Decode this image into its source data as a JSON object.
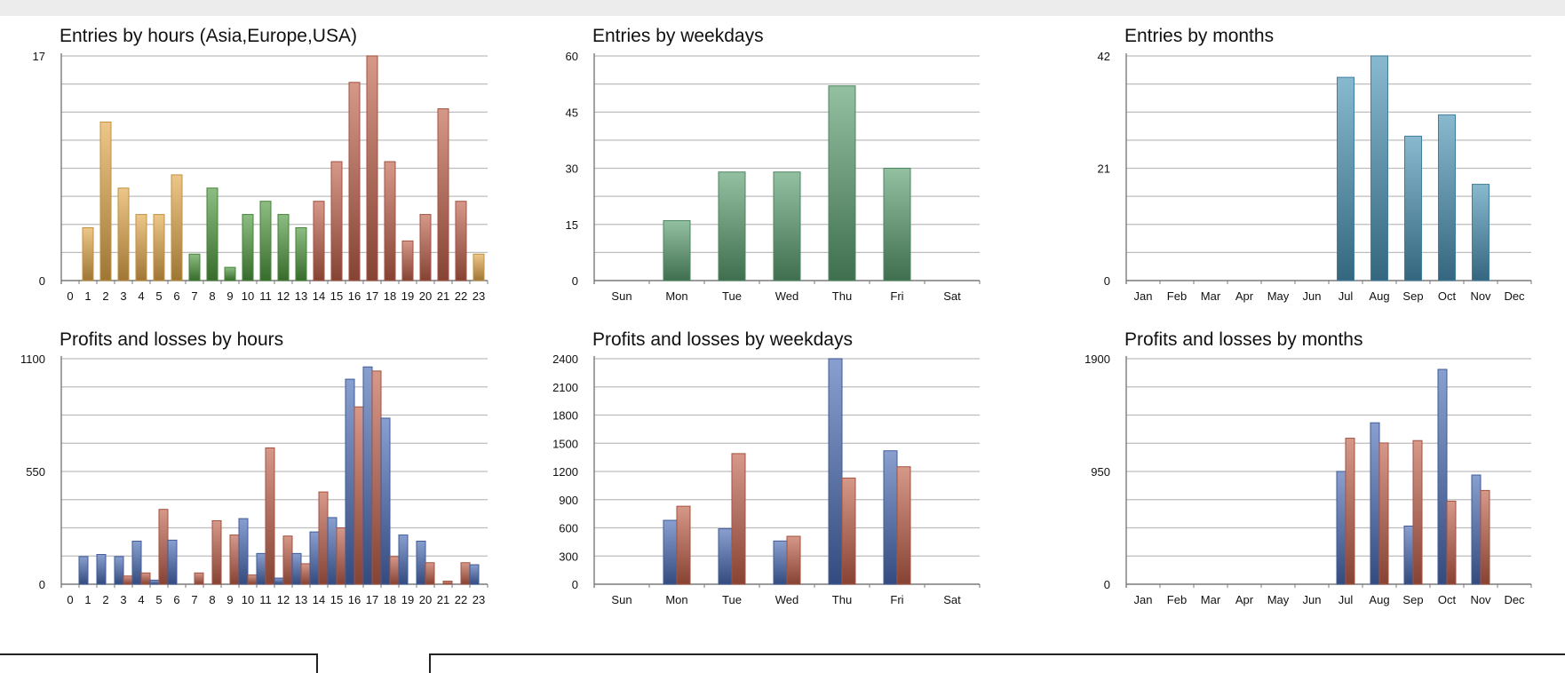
{
  "chart_data": [
    {
      "type": "bar",
      "title": "Entries by hours (Asia,Europe,USA)",
      "categories": [
        "0",
        "1",
        "2",
        "3",
        "4",
        "5",
        "6",
        "7",
        "8",
        "9",
        "10",
        "11",
        "12",
        "13",
        "14",
        "15",
        "16",
        "17",
        "18",
        "19",
        "20",
        "21",
        "22",
        "23"
      ],
      "values": [
        0,
        4,
        12,
        7,
        5,
        5,
        8,
        2,
        7,
        1,
        5,
        6,
        5,
        4,
        6,
        9,
        15,
        17,
        9,
        3,
        5,
        13,
        6,
        2
      ],
      "bar_colors": [
        "#e3a94a",
        "#e3a94a",
        "#e3a94a",
        "#e3a94a",
        "#e3a94a",
        "#e3a94a",
        "#e3a94a",
        "#4f9a3f",
        "#4f9a3f",
        "#4f9a3f",
        "#4f9a3f",
        "#4f9a3f",
        "#4f9a3f",
        "#4f9a3f",
        "#c0604a",
        "#c0604a",
        "#c0604a",
        "#c0604a",
        "#c0604a",
        "#c0604a",
        "#c0604a",
        "#c0604a",
        "#c0604a",
        "#e3a94a"
      ],
      "ylim": [
        0,
        17
      ],
      "yticks": [
        0,
        17
      ],
      "xlabel": "",
      "ylabel": "",
      "grid": true
    },
    {
      "type": "bar",
      "title": "Entries by weekdays",
      "categories": [
        "Sun",
        "Mon",
        "Tue",
        "Wed",
        "Thu",
        "Fri",
        "Sat"
      ],
      "values": [
        0,
        16,
        29,
        29,
        52,
        30,
        0
      ],
      "color": "#5a9e70",
      "ylim": [
        0,
        60
      ],
      "yticks": [
        0,
        15,
        30,
        45,
        60
      ],
      "xlabel": "",
      "ylabel": "",
      "grid": true
    },
    {
      "type": "bar",
      "title": "Entries by months",
      "categories": [
        "Jan",
        "Feb",
        "Mar",
        "Apr",
        "May",
        "Jun",
        "Jul",
        "Aug",
        "Sep",
        "Oct",
        "Nov",
        "Dec"
      ],
      "values": [
        0,
        0,
        0,
        0,
        0,
        0,
        38,
        42,
        27,
        31,
        18,
        0
      ],
      "color": "#4a93b5",
      "ylim": [
        0,
        42
      ],
      "yticks": [
        0,
        21,
        42
      ],
      "xlabel": "",
      "ylabel": "",
      "grid": true
    },
    {
      "type": "bar",
      "title": "Profits and losses by hours",
      "categories": [
        "0",
        "1",
        "2",
        "3",
        "4",
        "5",
        "6",
        "7",
        "8",
        "9",
        "10",
        "11",
        "12",
        "13",
        "14",
        "15",
        "16",
        "17",
        "18",
        "19",
        "20",
        "21",
        "22",
        "23"
      ],
      "series": [
        {
          "color": "#4a6bb5",
          "values": [
            0,
            135,
            145,
            135,
            210,
            20,
            215,
            0,
            0,
            0,
            320,
            150,
            30,
            150,
            255,
            325,
            1000,
            1060,
            810,
            240,
            210,
            0,
            0,
            95
          ]
        },
        {
          "color": "#c0604a",
          "values": [
            0,
            0,
            0,
            40,
            55,
            365,
            0,
            55,
            310,
            240,
            45,
            665,
            235,
            100,
            450,
            275,
            865,
            1040,
            135,
            0,
            105,
            15,
            105,
            0
          ]
        }
      ],
      "ylim": [
        0,
        1100
      ],
      "yticks": [
        0,
        550,
        1100
      ],
      "xlabel": "",
      "ylabel": "",
      "grid": true
    },
    {
      "type": "bar",
      "title": "Profits and losses by weekdays",
      "categories": [
        "Sun",
        "Mon",
        "Tue",
        "Wed",
        "Thu",
        "Fri",
        "Sat"
      ],
      "series": [
        {
          "color": "#4a6bb5",
          "values": [
            0,
            680,
            590,
            460,
            2400,
            1420,
            0
          ]
        },
        {
          "color": "#c0604a",
          "values": [
            0,
            830,
            1390,
            510,
            1130,
            1250,
            0
          ]
        }
      ],
      "ylim": [
        0,
        2400
      ],
      "yticks": [
        0,
        300,
        600,
        900,
        1200,
        1500,
        1800,
        2100,
        2400
      ],
      "xlabel": "",
      "ylabel": "",
      "grid": true
    },
    {
      "type": "bar",
      "title": "Profits and losses by months",
      "categories": [
        "Jan",
        "Feb",
        "Mar",
        "Apr",
        "May",
        "Jun",
        "Jul",
        "Aug",
        "Sep",
        "Oct",
        "Nov",
        "Dec"
      ],
      "series": [
        {
          "color": "#4a6bb5",
          "values": [
            0,
            0,
            0,
            0,
            0,
            0,
            950,
            1360,
            490,
            1810,
            920,
            0
          ]
        },
        {
          "color": "#c0604a",
          "values": [
            0,
            0,
            0,
            0,
            0,
            0,
            1230,
            1190,
            1210,
            700,
            790,
            0
          ]
        }
      ],
      "ylim": [
        0,
        1900
      ],
      "yticks": [
        0,
        950,
        1900
      ],
      "xlabel": "",
      "ylabel": "",
      "grid": true
    }
  ]
}
